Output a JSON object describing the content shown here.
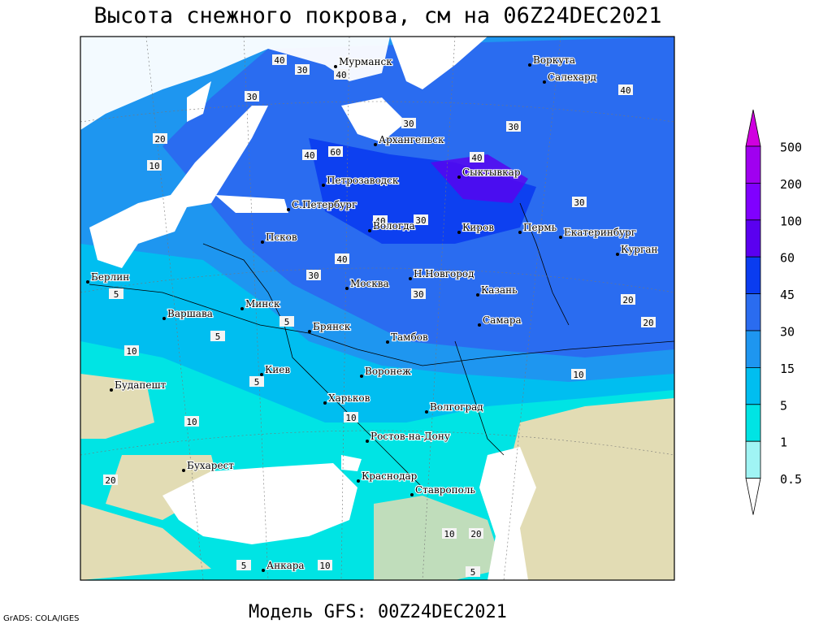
{
  "header": {
    "title": "Высота снежного покрова, см на 06Z24DEC2021"
  },
  "footer": {
    "model": "Модель GFS: 00Z24DEC2021",
    "credit": "GrADS: COLA/IGES"
  },
  "legend": {
    "labels": [
      "500",
      "200",
      "100",
      "60",
      "45",
      "30",
      "15",
      "5",
      "1",
      "0.5"
    ],
    "colors": [
      "#d000e0",
      "#a000f0",
      "#8000ff",
      "#5a00f0",
      "#0a3cf0",
      "#2a6cf0",
      "#1e96f0",
      "#00bef0",
      "#00e4e4",
      "#a0f4f4",
      "#ffffff"
    ]
  },
  "cities": [
    "Мурманск",
    "Воркута",
    "Салехард",
    "Архангельск",
    "Сыктывкар",
    "Петрозаводск",
    "С.Петербург",
    "Вологда",
    "Киров",
    "Пермь",
    "Екатеринбург",
    "Курган",
    "Псков",
    "Берлин",
    "Москва",
    "Н.Новгород",
    "Казань",
    "Минск",
    "Варшава",
    "Самара",
    "Брянск",
    "Тамбов",
    "Киев",
    "Воронеж",
    "Будапешт",
    "Харьков",
    "Волгоград",
    "Ростов-на-Дону",
    "Бухарест",
    "Краснодар",
    "Ставрополь",
    "Анкара"
  ],
  "contour_labels": [
    "40",
    "30",
    "40",
    "30",
    "40",
    "30",
    "20",
    "10",
    "40",
    "60",
    "30",
    "40",
    "30",
    "30",
    "40",
    "40",
    "30",
    "30",
    "20",
    "20",
    "10",
    "10",
    "5",
    "5",
    "10",
    "10",
    "5",
    "20",
    "10",
    "5",
    "5",
    "10",
    "20",
    "5"
  ]
}
